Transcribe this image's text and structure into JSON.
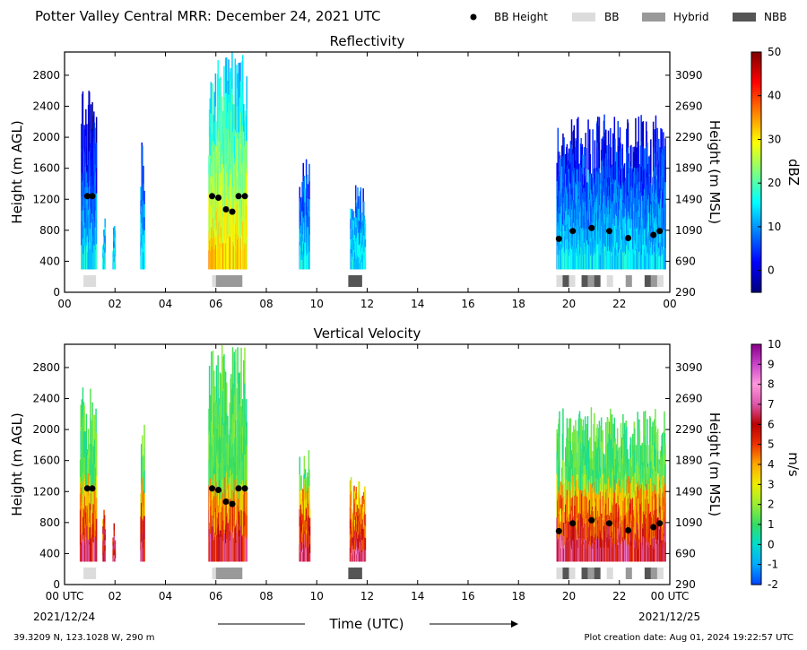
{
  "header": {
    "title": "Potter Valley Central MRR:  December 24, 2021 UTC",
    "legend": [
      {
        "label": "BB Height",
        "kind": "dot",
        "color": "#000000"
      },
      {
        "label": "BB",
        "kind": "box",
        "color": "#dcdcdc"
      },
      {
        "label": "Hybrid",
        "kind": "box",
        "color": "#999999"
      },
      {
        "label": "NBB",
        "kind": "box",
        "color": "#555555"
      }
    ]
  },
  "footer": {
    "location": "39.3209 N, 123.1028 W, 290 m",
    "created": "Plot creation date: Aug 01, 2024 19:22:57 UTC",
    "xaxis_title": "Time (UTC)",
    "start_date": "2021/12/24",
    "end_date": "2021/12/25"
  },
  "chart_data": [
    {
      "type": "heatmap",
      "title": "Reflectivity",
      "ylabel_left": "Height (m AGL)",
      "ylabel_right": "Height (m MSL)",
      "xlim": [
        0,
        24
      ],
      "ylim": [
        0,
        3100
      ],
      "y_ticks": [
        0,
        400,
        800,
        1200,
        1600,
        2000,
        2400,
        2800
      ],
      "y_tick_labels_right": [
        "290",
        "690",
        "1090",
        "1490",
        "1890",
        "2290",
        "2690",
        "3090"
      ],
      "x_tick_labels": [
        "00",
        "02",
        "04",
        "06",
        "08",
        "10",
        "12",
        "14",
        "16",
        "18",
        "20",
        "22",
        "00"
      ],
      "colorbar": {
        "label": "dBZ",
        "min": -5,
        "max": 50,
        "ticks": [
          "0",
          "10",
          "20",
          "30",
          "40",
          "50"
        ],
        "tick_values": [
          0,
          10,
          20,
          30,
          40,
          50
        ],
        "colors": [
          "#00007f",
          "#0000ff",
          "#007fff",
          "#00ffff",
          "#7fff7f",
          "#ffff00",
          "#ff7f00",
          "#ff0000",
          "#7f0000"
        ]
      },
      "bb_height": [
        {
          "time": 0.9,
          "height": 1240
        },
        {
          "time": 1.1,
          "height": 1240
        },
        {
          "time": 5.85,
          "height": 1240
        },
        {
          "time": 6.1,
          "height": 1220
        },
        {
          "time": 6.4,
          "height": 1070
        },
        {
          "time": 6.65,
          "height": 1040
        },
        {
          "time": 6.9,
          "height": 1240
        },
        {
          "time": 7.15,
          "height": 1240
        },
        {
          "time": 19.6,
          "height": 690
        },
        {
          "time": 20.15,
          "height": 790
        },
        {
          "time": 20.9,
          "height": 830
        },
        {
          "time": 21.6,
          "height": 790
        },
        {
          "time": 22.35,
          "height": 700
        },
        {
          "time": 23.35,
          "height": 740
        },
        {
          "time": 23.6,
          "height": 790
        }
      ],
      "bb_type": [
        {
          "start": 0.75,
          "end": 1.25,
          "kind": "BB"
        },
        {
          "start": 5.85,
          "end": 6.0,
          "kind": "BB"
        },
        {
          "start": 6.0,
          "end": 7.05,
          "kind": "Hybrid"
        },
        {
          "start": 11.25,
          "end": 11.8,
          "kind": "NBB"
        },
        {
          "start": 19.5,
          "end": 19.75,
          "kind": "BB"
        },
        {
          "start": 19.75,
          "end": 20.0,
          "kind": "NBB"
        },
        {
          "start": 20.0,
          "end": 20.25,
          "kind": "BB"
        },
        {
          "start": 20.5,
          "end": 20.75,
          "kind": "NBB"
        },
        {
          "start": 20.75,
          "end": 21.0,
          "kind": "Hybrid"
        },
        {
          "start": 21.0,
          "end": 21.25,
          "kind": "NBB"
        },
        {
          "start": 21.5,
          "end": 21.75,
          "kind": "BB"
        },
        {
          "start": 22.25,
          "end": 22.5,
          "kind": "Hybrid"
        },
        {
          "start": 23.0,
          "end": 23.25,
          "kind": "NBB"
        },
        {
          "start": 23.25,
          "end": 23.5,
          "kind": "Hybrid"
        },
        {
          "start": 23.5,
          "end": 23.75,
          "kind": "BB"
        }
      ]
    },
    {
      "type": "heatmap",
      "title": "Vertical Velocity",
      "ylabel_left": "Height (m AGL)",
      "ylabel_right": "Height (m MSL)",
      "xlim": [
        0,
        24
      ],
      "ylim": [
        0,
        3100
      ],
      "y_ticks": [
        0,
        400,
        800,
        1200,
        1600,
        2000,
        2400,
        2800
      ],
      "y_tick_labels_right": [
        "290",
        "690",
        "1090",
        "1490",
        "1890",
        "2290",
        "2690",
        "3090"
      ],
      "x_tick_labels": [
        "00 UTC",
        "02",
        "04",
        "06",
        "08",
        "10",
        "12",
        "14",
        "16",
        "18",
        "20",
        "22",
        "00 UTC"
      ],
      "colorbar": {
        "label": "m/s",
        "min": -2,
        "max": 10,
        "ticks": [
          "-2",
          "-1",
          "0",
          "1",
          "2",
          "3",
          "4",
          "5",
          "6",
          "7",
          "8",
          "9",
          "10"
        ],
        "tick_values": [
          -2,
          -1,
          0,
          1,
          2,
          3,
          4,
          5,
          6,
          7,
          8,
          9,
          10
        ],
        "colors": [
          "#0044ff",
          "#00aaff",
          "#00ddcc",
          "#33dd66",
          "#99ee33",
          "#eeee00",
          "#ffaa00",
          "#ee3300",
          "#bb0000",
          "#dd55aa",
          "#ff99dd",
          "#cc44cc",
          "#880088"
        ]
      },
      "bb_height": [
        {
          "time": 0.9,
          "height": 1240
        },
        {
          "time": 1.1,
          "height": 1240
        },
        {
          "time": 5.85,
          "height": 1240
        },
        {
          "time": 6.1,
          "height": 1220
        },
        {
          "time": 6.4,
          "height": 1070
        },
        {
          "time": 6.65,
          "height": 1040
        },
        {
          "time": 6.9,
          "height": 1240
        },
        {
          "time": 7.15,
          "height": 1240
        },
        {
          "time": 19.6,
          "height": 690
        },
        {
          "time": 20.15,
          "height": 790
        },
        {
          "time": 20.9,
          "height": 830
        },
        {
          "time": 21.6,
          "height": 790
        },
        {
          "time": 22.35,
          "height": 700
        },
        {
          "time": 23.35,
          "height": 740
        },
        {
          "time": 23.6,
          "height": 790
        }
      ],
      "bb_type": [
        {
          "start": 0.75,
          "end": 1.25,
          "kind": "BB"
        },
        {
          "start": 5.85,
          "end": 6.0,
          "kind": "BB"
        },
        {
          "start": 6.0,
          "end": 7.05,
          "kind": "Hybrid"
        },
        {
          "start": 11.25,
          "end": 11.8,
          "kind": "NBB"
        },
        {
          "start": 19.5,
          "end": 19.75,
          "kind": "BB"
        },
        {
          "start": 19.75,
          "end": 20.0,
          "kind": "NBB"
        },
        {
          "start": 20.0,
          "end": 20.25,
          "kind": "BB"
        },
        {
          "start": 20.5,
          "end": 20.75,
          "kind": "NBB"
        },
        {
          "start": 20.75,
          "end": 21.0,
          "kind": "Hybrid"
        },
        {
          "start": 21.0,
          "end": 21.25,
          "kind": "NBB"
        },
        {
          "start": 21.5,
          "end": 21.75,
          "kind": "BB"
        },
        {
          "start": 22.25,
          "end": 22.5,
          "kind": "Hybrid"
        },
        {
          "start": 23.0,
          "end": 23.25,
          "kind": "NBB"
        },
        {
          "start": 23.25,
          "end": 23.5,
          "kind": "Hybrid"
        },
        {
          "start": 23.5,
          "end": 23.75,
          "kind": "BB"
        }
      ]
    }
  ],
  "echo_periods": [
    {
      "start": 0.6,
      "end": 1.25,
      "top": 2600
    },
    {
      "start": 1.5,
      "end": 1.6,
      "top": 1000
    },
    {
      "start": 1.9,
      "end": 2.0,
      "top": 900
    },
    {
      "start": 3.0,
      "end": 3.15,
      "top": 2100
    },
    {
      "start": 5.7,
      "end": 7.2,
      "top": 3100
    },
    {
      "start": 9.3,
      "end": 9.7,
      "top": 1750
    },
    {
      "start": 11.3,
      "end": 11.9,
      "top": 1400
    },
    {
      "start": 19.5,
      "end": 23.8,
      "top": 2300
    }
  ]
}
